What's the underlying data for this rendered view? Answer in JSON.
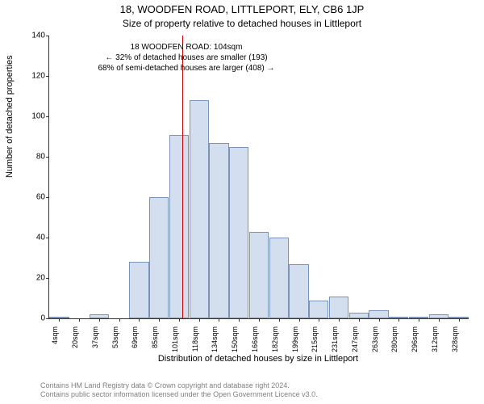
{
  "title_main": "18, WOODFEN ROAD, LITTLEPORT, ELY, CB6 1JP",
  "title_sub": "Size of property relative to detached houses in Littleport",
  "ylabel": "Number of detached properties",
  "xlabel": "Distribution of detached houses by size in Littleport",
  "footer_line1": "Contains HM Land Registry data © Crown copyright and database right 2024.",
  "footer_line2": "Contains public sector information licensed under the Open Government Licence v3.0.",
  "chart": {
    "type": "histogram",
    "ylim": [
      0,
      140
    ],
    "yticks": [
      0,
      20,
      40,
      60,
      80,
      100,
      120,
      140
    ],
    "x_categories": [
      "4sqm",
      "20sqm",
      "37sqm",
      "53sqm",
      "69sqm",
      "85sqm",
      "101sqm",
      "118sqm",
      "134sqm",
      "150sqm",
      "166sqm",
      "182sqm",
      "199sqm",
      "215sqm",
      "231sqm",
      "247sqm",
      "263sqm",
      "280sqm",
      "296sqm",
      "312sqm",
      "328sqm"
    ],
    "x_tick_every": 1,
    "values": [
      1,
      0,
      2,
      0,
      28,
      60,
      91,
      108,
      87,
      85,
      43,
      40,
      27,
      9,
      11,
      3,
      4,
      1,
      1,
      2,
      1
    ],
    "bar_fill": "#d3deef",
    "bar_stroke": "#7a93b9",
    "bar_stroke_width": 1,
    "background": "#ffffff",
    "axis_color": "#333333",
    "tick_fontsize": 10,
    "label_fontsize": 11,
    "title_fontsize_main": 13,
    "title_fontsize_sub": 12,
    "marker": {
      "position_sqm": 104,
      "color": "#cc0000",
      "width": 1
    },
    "annotation": {
      "lines": [
        "18 WOODFEN ROAD: 104sqm",
        "← 32% of detached houses are smaller (193)",
        "68% of semi-detached houses are larger (408) →"
      ],
      "top_value": 137,
      "text_color": "#000000",
      "fontsize": 10
    }
  },
  "footer_color": "#808080"
}
